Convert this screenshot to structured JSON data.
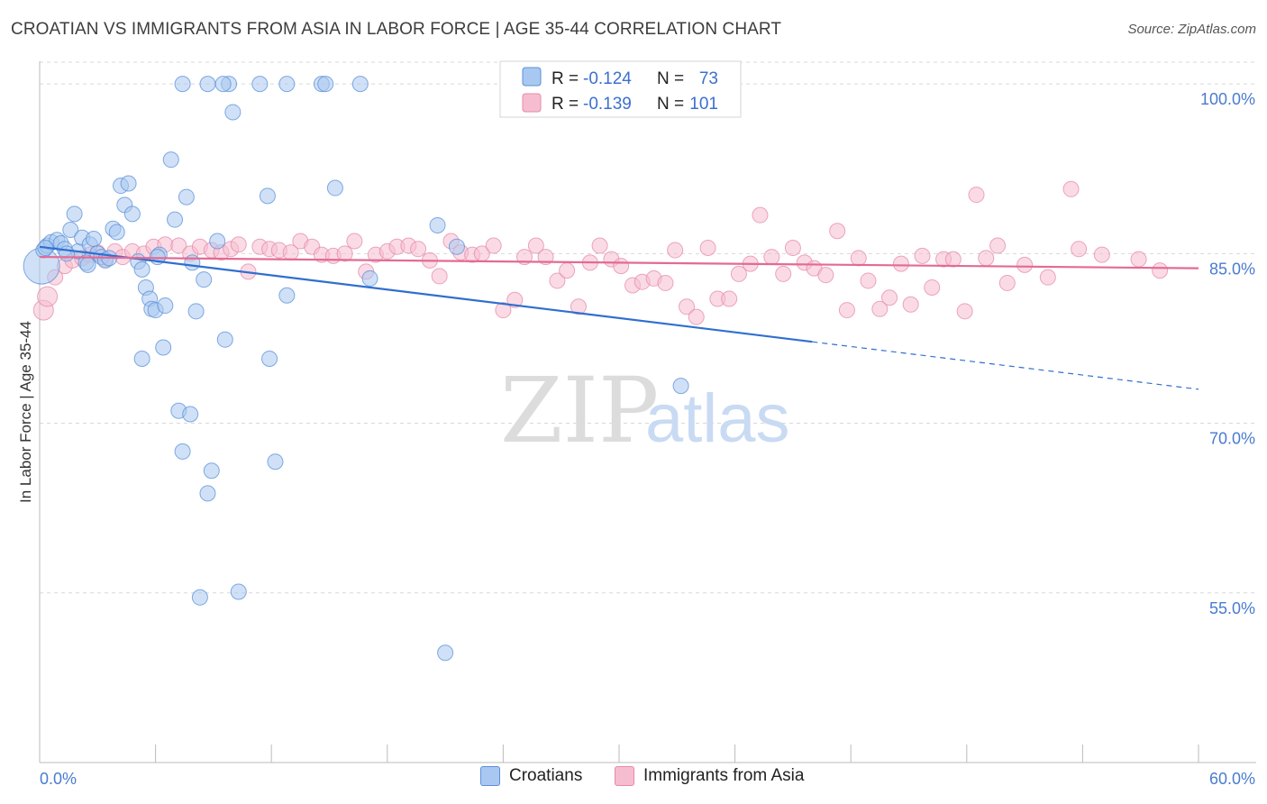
{
  "title": "CROATIAN VS IMMIGRANTS FROM ASIA IN LABOR FORCE | AGE 35-44 CORRELATION CHART",
  "source": "Source: ZipAtlas.com",
  "watermark": {
    "zip": "ZIP",
    "atlas": "atlas"
  },
  "colors": {
    "croatians_fill": "#a9c8f1",
    "croatians_stroke": "#5a8fd8",
    "croatians_line": "#2f6fcf",
    "asia_fill": "#f6bdd0",
    "asia_stroke": "#e58aa9",
    "asia_line": "#e36a95",
    "grid": "#d8d8d8",
    "tick_label": "#4a7bd0"
  },
  "legend_top": {
    "rows": [
      {
        "r_label": "R =",
        "r_value": "-0.124",
        "n_label": "N =",
        "n_value": "73"
      },
      {
        "r_label": "R =",
        "r_value": "-0.139",
        "n_label": "N =",
        "n_value": "101"
      }
    ]
  },
  "legend_bottom": {
    "croatians": "Croatians",
    "asia": "Immigrants from Asia"
  },
  "chart_data": {
    "type": "scatter",
    "title": "CROATIAN VS IMMIGRANTS FROM ASIA IN LABOR FORCE | AGE 35-44 CORRELATION CHART",
    "xlabel": "",
    "ylabel": "In Labor Force | Age 35-44",
    "xlim": [
      0,
      60
    ],
    "ylim": [
      40,
      102
    ],
    "x_tick_labels": [
      "0.0%",
      "60.0%"
    ],
    "y_ticks": [
      55,
      70,
      85,
      100
    ],
    "y_tick_labels": [
      "55.0%",
      "70.0%",
      "85.0%",
      "100.0%"
    ],
    "grid": "horizontal dashed",
    "legend_position": "top-center",
    "series": [
      {
        "name": "Croatians",
        "r": -0.124,
        "n": 73,
        "trend": {
          "x0": 0,
          "y0": 85.6,
          "x1": 40,
          "y1": 77.2,
          "dash_to_x": 60,
          "dash_to_y": 73.0
        },
        "points": [
          [
            0.1,
            83.9
          ],
          [
            0.2,
            85.3
          ],
          [
            0.4,
            85.7
          ],
          [
            0.6,
            86.0
          ],
          [
            0.9,
            86.2
          ],
          [
            1.1,
            85.9
          ],
          [
            1.3,
            85.4
          ],
          [
            1.6,
            87.1
          ],
          [
            1.8,
            88.5
          ],
          [
            2.0,
            85.2
          ],
          [
            2.2,
            86.4
          ],
          [
            2.4,
            84.2
          ],
          [
            2.6,
            85.8
          ],
          [
            2.8,
            86.3
          ],
          [
            3.0,
            85.0
          ],
          [
            3.2,
            84.7
          ],
          [
            3.4,
            84.4
          ],
          [
            3.6,
            84.6
          ],
          [
            3.8,
            87.2
          ],
          [
            4.0,
            86.9
          ],
          [
            4.2,
            91.0
          ],
          [
            4.4,
            89.3
          ],
          [
            4.6,
            91.2
          ],
          [
            4.8,
            88.5
          ],
          [
            5.1,
            84.3
          ],
          [
            5.3,
            83.6
          ],
          [
            5.5,
            82.0
          ],
          [
            5.7,
            81.0
          ],
          [
            5.8,
            80.1
          ],
          [
            6.0,
            80.0
          ],
          [
            6.2,
            84.9
          ],
          [
            6.5,
            80.4
          ],
          [
            6.8,
            93.3
          ],
          [
            7.0,
            88.0
          ],
          [
            7.2,
            71.1
          ],
          [
            7.4,
            67.5
          ],
          [
            7.6,
            90.0
          ],
          [
            7.8,
            70.8
          ],
          [
            7.9,
            84.2
          ],
          [
            8.1,
            79.9
          ],
          [
            8.3,
            54.6
          ],
          [
            8.5,
            82.7
          ],
          [
            8.7,
            63.8
          ],
          [
            8.9,
            65.8
          ],
          [
            9.2,
            86.1
          ],
          [
            9.6,
            77.4
          ],
          [
            10.0,
            97.5
          ],
          [
            10.3,
            55.1
          ],
          [
            11.8,
            90.1
          ],
          [
            11.9,
            75.7
          ],
          [
            12.2,
            66.6
          ],
          [
            12.8,
            81.3
          ],
          [
            15.3,
            90.8
          ],
          [
            17.1,
            82.8
          ],
          [
            20.6,
            87.5
          ],
          [
            21.0,
            49.7
          ],
          [
            21.6,
            85.6
          ],
          [
            9.8,
            100.0
          ],
          [
            9.5,
            100.0
          ],
          [
            8.7,
            100.0
          ],
          [
            7.4,
            100.0
          ],
          [
            11.4,
            100.0
          ],
          [
            12.8,
            100.0
          ],
          [
            14.6,
            100.0
          ],
          [
            14.8,
            100.0
          ],
          [
            16.6,
            100.0
          ],
          [
            33.2,
            73.3
          ],
          [
            6.1,
            84.7
          ],
          [
            2.5,
            84.0
          ],
          [
            5.3,
            75.7
          ],
          [
            6.4,
            76.7
          ],
          [
            1.4,
            85.0
          ],
          [
            0.3,
            85.5
          ]
        ]
      },
      {
        "name": "Immigrants from Asia",
        "r": -0.139,
        "n": 101,
        "trend": {
          "x0": 0,
          "y0": 84.7,
          "x1": 60,
          "y1": 83.7
        },
        "points": [
          [
            0.2,
            80.0
          ],
          [
            0.4,
            81.2
          ],
          [
            0.8,
            82.9
          ],
          [
            1.3,
            83.9
          ],
          [
            1.7,
            84.4
          ],
          [
            2.2,
            84.6
          ],
          [
            2.6,
            84.9
          ],
          [
            3.0,
            85.1
          ],
          [
            3.4,
            84.5
          ],
          [
            3.9,
            85.2
          ],
          [
            4.3,
            84.7
          ],
          [
            4.8,
            85.2
          ],
          [
            5.4,
            85.0
          ],
          [
            5.9,
            85.6
          ],
          [
            6.5,
            85.8
          ],
          [
            7.2,
            85.7
          ],
          [
            7.8,
            85.0
          ],
          [
            8.3,
            85.6
          ],
          [
            8.9,
            85.3
          ],
          [
            9.4,
            85.1
          ],
          [
            9.9,
            85.4
          ],
          [
            10.3,
            85.8
          ],
          [
            10.8,
            83.4
          ],
          [
            11.4,
            85.6
          ],
          [
            11.9,
            85.4
          ],
          [
            12.4,
            85.3
          ],
          [
            13.0,
            85.1
          ],
          [
            13.5,
            86.1
          ],
          [
            14.1,
            85.6
          ],
          [
            14.6,
            84.9
          ],
          [
            15.2,
            84.8
          ],
          [
            15.8,
            85.0
          ],
          [
            16.3,
            86.1
          ],
          [
            16.9,
            83.4
          ],
          [
            17.4,
            84.9
          ],
          [
            18.0,
            85.2
          ],
          [
            18.5,
            85.6
          ],
          [
            19.1,
            85.7
          ],
          [
            19.6,
            85.4
          ],
          [
            20.2,
            84.4
          ],
          [
            20.7,
            83.0
          ],
          [
            21.3,
            86.1
          ],
          [
            21.8,
            85.1
          ],
          [
            22.4,
            84.9
          ],
          [
            22.9,
            85.0
          ],
          [
            23.5,
            85.7
          ],
          [
            24.0,
            80.0
          ],
          [
            24.6,
            80.9
          ],
          [
            25.1,
            84.7
          ],
          [
            25.7,
            85.7
          ],
          [
            26.2,
            84.7
          ],
          [
            26.8,
            82.6
          ],
          [
            27.3,
            83.5
          ],
          [
            27.9,
            80.3
          ],
          [
            28.5,
            84.2
          ],
          [
            29.0,
            85.7
          ],
          [
            29.6,
            84.5
          ],
          [
            30.1,
            83.9
          ],
          [
            30.7,
            82.2
          ],
          [
            31.2,
            82.5
          ],
          [
            31.8,
            82.8
          ],
          [
            32.4,
            82.4
          ],
          [
            32.9,
            85.3
          ],
          [
            33.5,
            80.3
          ],
          [
            34.0,
            79.4
          ],
          [
            34.6,
            85.5
          ],
          [
            35.1,
            81.0
          ],
          [
            35.7,
            81.0
          ],
          [
            36.2,
            83.2
          ],
          [
            36.8,
            84.1
          ],
          [
            37.3,
            88.4
          ],
          [
            37.9,
            84.7
          ],
          [
            38.5,
            83.2
          ],
          [
            39.0,
            85.5
          ],
          [
            39.6,
            84.2
          ],
          [
            40.1,
            83.7
          ],
          [
            40.7,
            83.1
          ],
          [
            41.3,
            87.0
          ],
          [
            41.8,
            80.0
          ],
          [
            42.4,
            84.6
          ],
          [
            42.9,
            82.6
          ],
          [
            43.5,
            80.1
          ],
          [
            44.0,
            81.1
          ],
          [
            44.6,
            84.1
          ],
          [
            45.1,
            80.5
          ],
          [
            45.7,
            84.8
          ],
          [
            46.2,
            82.0
          ],
          [
            46.8,
            84.5
          ],
          [
            47.3,
            84.5
          ],
          [
            47.9,
            79.9
          ],
          [
            48.5,
            90.2
          ],
          [
            49.0,
            84.6
          ],
          [
            49.6,
            85.7
          ],
          [
            50.1,
            82.4
          ],
          [
            51.0,
            84.0
          ],
          [
            52.2,
            82.9
          ],
          [
            53.4,
            90.7
          ],
          [
            53.8,
            85.4
          ],
          [
            55.0,
            84.9
          ],
          [
            56.9,
            84.5
          ],
          [
            58.0,
            83.5
          ]
        ]
      }
    ]
  }
}
